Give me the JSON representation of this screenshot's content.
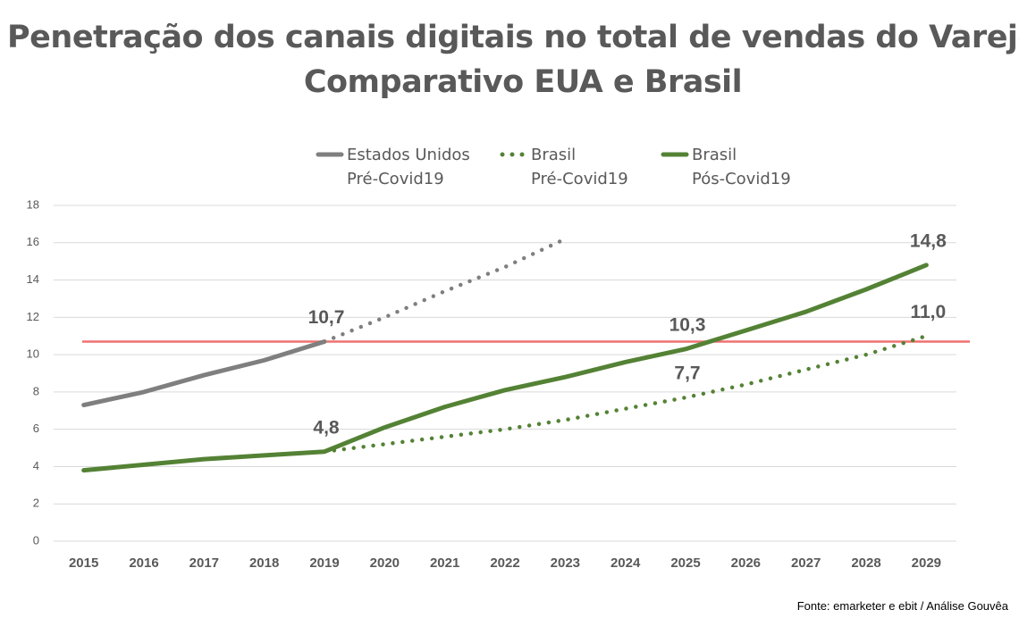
{
  "chart_data": {
    "type": "line",
    "title": "Penetração dos canais digitais no total de vendas do Varejo",
    "subtitle": "Comparativo EUA e Brasil",
    "x": [
      2015,
      2016,
      2017,
      2018,
      2019,
      2020,
      2021,
      2022,
      2023,
      2024,
      2025,
      2026,
      2027,
      2028,
      2029
    ],
    "xlim": [
      2014.5,
      2029.5
    ],
    "xticks": [
      2015,
      2016,
      2017,
      2018,
      2019,
      2020,
      2021,
      2022,
      2023,
      2024,
      2025,
      2026,
      2027,
      2028,
      2029
    ],
    "ylim": [
      0,
      18
    ],
    "yticks": [
      0,
      2,
      4,
      6,
      8,
      10,
      12,
      14,
      16,
      18
    ],
    "grid": true,
    "legend": "top",
    "series": [
      {
        "name": "Estados Unidos\nPré-Covid19",
        "color": "#7f7f7f",
        "style": "solid",
        "values": [
          7.3,
          8.0,
          8.9,
          9.7,
          10.7,
          null,
          null,
          null,
          null,
          null,
          null,
          null,
          null,
          null,
          null
        ],
        "value_labels": [
          null,
          null,
          null,
          null,
          "10,7",
          null,
          null,
          null,
          null,
          null,
          null,
          null,
          null,
          null,
          null
        ]
      },
      {
        "color": "#7f7f7f",
        "style": "dotted",
        "values": [
          null,
          null,
          null,
          null,
          10.7,
          12.0,
          13.4,
          14.7,
          16.2,
          null,
          null,
          null,
          null,
          null,
          null
        ]
      },
      {
        "name": "Brasil\nPré-Covid19",
        "color": "#548235",
        "style": "dotted",
        "values": [
          null,
          null,
          null,
          null,
          4.8,
          5.2,
          5.6,
          6.0,
          6.5,
          7.1,
          7.7,
          8.4,
          9.2,
          10.0,
          11.0
        ],
        "value_labels": [
          null,
          null,
          null,
          null,
          null,
          null,
          null,
          null,
          null,
          null,
          "7,7",
          null,
          null,
          null,
          "11,0"
        ]
      },
      {
        "name": "Brasil\nPós-Covid19",
        "color": "#548235",
        "style": "solid",
        "values": [
          3.8,
          4.1,
          4.4,
          4.6,
          4.8,
          6.1,
          7.2,
          8.1,
          8.8,
          9.6,
          10.3,
          11.3,
          12.3,
          13.5,
          14.8
        ],
        "value_labels": [
          null,
          null,
          null,
          null,
          "4,8",
          null,
          null,
          null,
          null,
          null,
          "10,3",
          null,
          null,
          null,
          "14,8"
        ]
      }
    ],
    "reference_line": {
      "value": 10.7,
      "color": "#f07070"
    },
    "source": "Fonte: emarketer e ebit /  Análise Gouvêa"
  }
}
